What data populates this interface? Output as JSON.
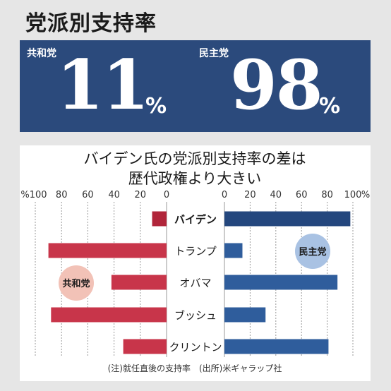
{
  "headline": "党派別支持率",
  "banner": {
    "left": {
      "label": "共和党",
      "value": "11",
      "unit": "%"
    },
    "right": {
      "label": "民主党",
      "value": "98",
      "unit": "%"
    }
  },
  "chart_data": {
    "type": "bar",
    "title_lines": [
      "バイデン氏の党派別支持率の差は",
      "歴代政権より大きい"
    ],
    "categories": [
      "バイデン",
      "トランプ",
      "オバマ",
      "ブッシュ",
      "クリントン"
    ],
    "series": [
      {
        "name": "共和党",
        "values": [
          11,
          90,
          42,
          88,
          33
        ],
        "color": "#c8354a"
      },
      {
        "name": "民主党",
        "values": [
          98,
          14,
          88,
          32,
          81
        ],
        "color": "#2f5d9c"
      }
    ],
    "left_ticks": [
      "%100",
      "80",
      "60",
      "40",
      "20",
      "0"
    ],
    "right_ticks": [
      "0",
      "20",
      "40",
      "60",
      "80",
      "100",
      "%"
    ],
    "xlim": [
      0,
      100
    ],
    "grid": true,
    "highlight_colors": {
      "first": [
        "#b1253a",
        "#24477e"
      ]
    },
    "bubble_colors": {
      "left": "#f2c2b7",
      "right": "#a9c2e3"
    },
    "note": "(注)就任直後の支持率　(出所)米ギャラップ社"
  }
}
